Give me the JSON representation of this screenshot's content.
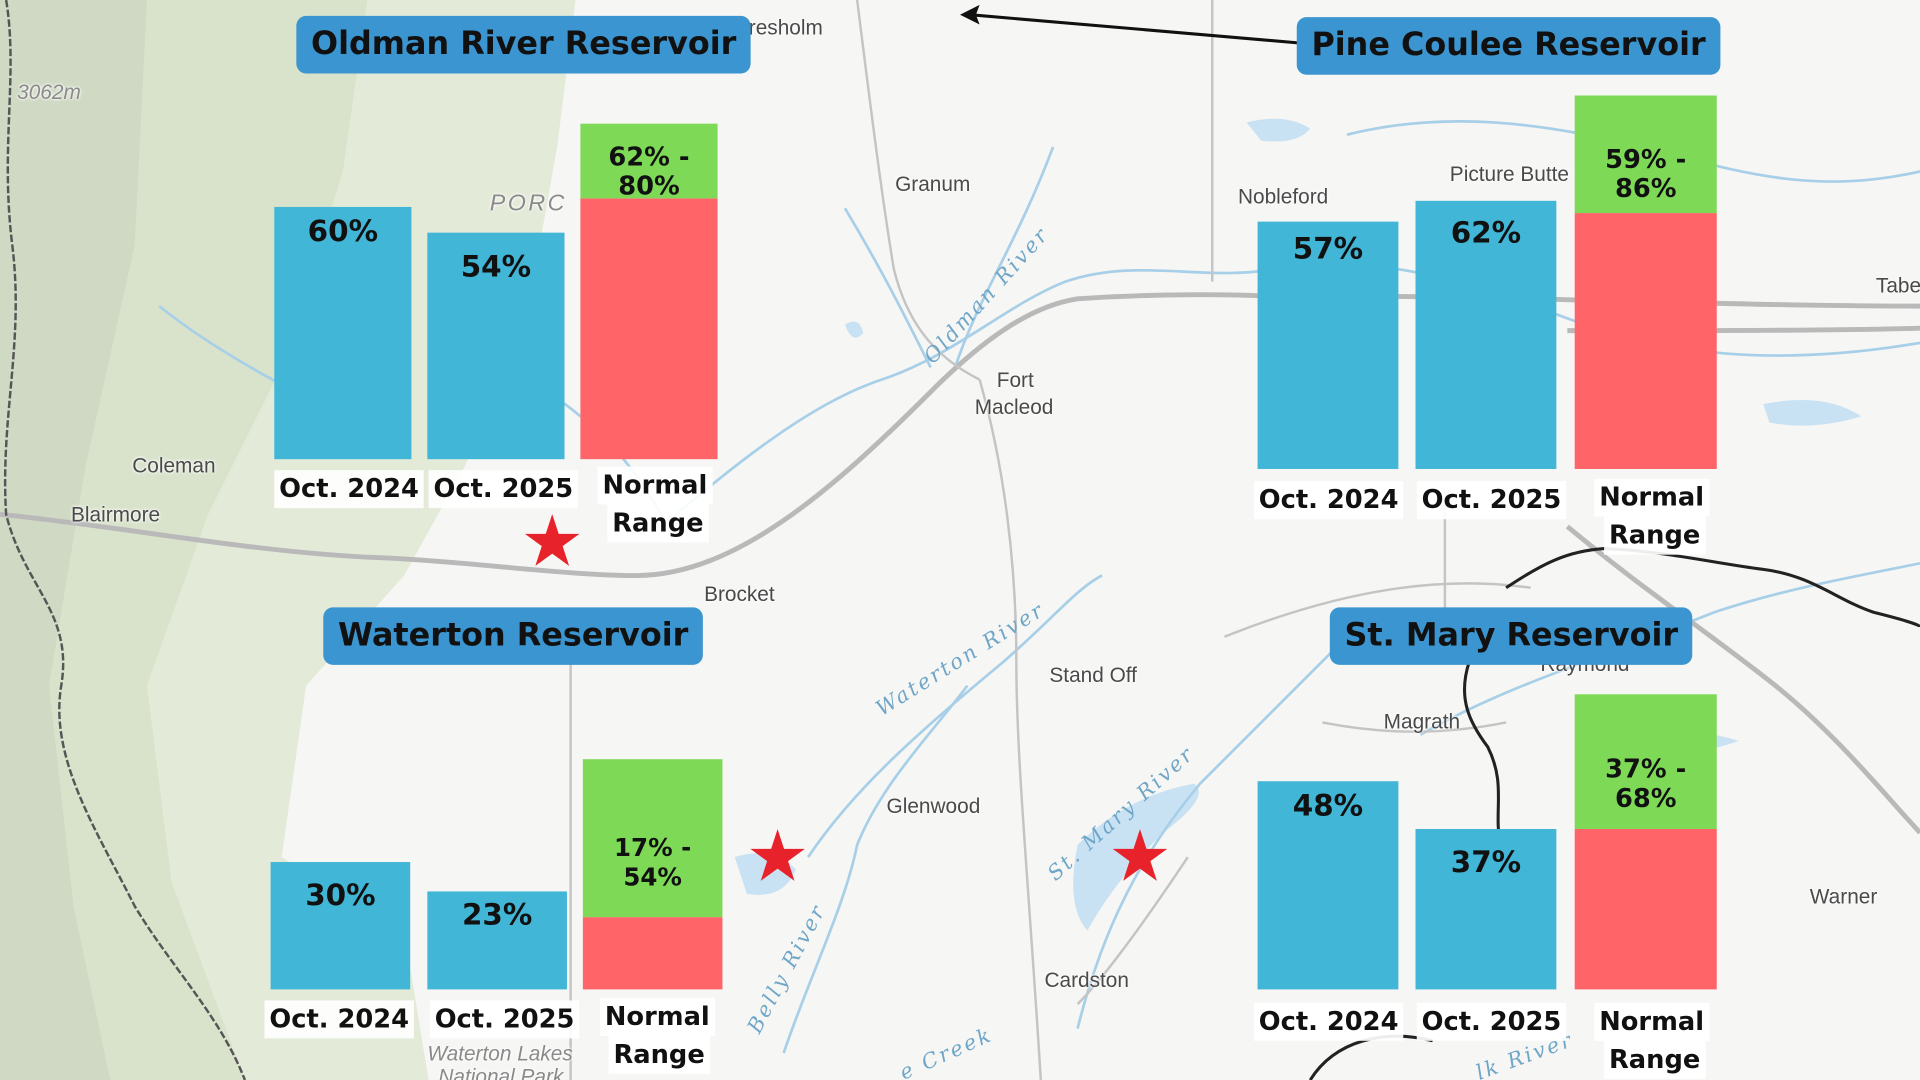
{
  "map": {
    "elevation_label": "3062m",
    "range_label": "PORC",
    "places": {
      "claresholm": "Claresholm",
      "granum": "Granum",
      "nobleford": "Nobleford",
      "picture_butte": "Picture Butte",
      "taber": "Tabe",
      "fort_macleod_1": "Fort",
      "fort_macleod_2": "Macleod",
      "coleman": "Coleman",
      "blairmore": "Blairmore",
      "brocket": "Brocket",
      "stand_off": "Stand Off",
      "magrath": "Magrath",
      "raymond": "Raymond",
      "glenwood": "Glenwood",
      "cardston": "Cardston",
      "warner": "Warner",
      "waterton_1": "Waterton Lakes",
      "waterton_2": "National Park"
    },
    "rivers": {
      "oldman": "Oldman River",
      "waterton": "Waterton River",
      "st_mary": "St. Mary River",
      "belly": "Belly River",
      "lee_creek": "e Creek",
      "milk": "lk River"
    }
  },
  "reservoirs": {
    "oldman": {
      "title": "Oldman River Reservoir",
      "oct_2024": {
        "value": 60,
        "label": "60%"
      },
      "oct_2025": {
        "value": 54,
        "label": "54%"
      },
      "normal_range": {
        "low": 62,
        "high": 80,
        "label": "62% - 80%"
      },
      "xlabels": {
        "a": "Oct. 2024",
        "b": "Oct. 2025",
        "c1": "Normal",
        "c2": "Range"
      }
    },
    "pine_coulee": {
      "title": "Pine Coulee Reservoir",
      "oct_2024": {
        "value": 57,
        "label": "57%"
      },
      "oct_2025": {
        "value": 62,
        "label": "62%"
      },
      "normal_range": {
        "low": 59,
        "high": 86,
        "label": "59% - 86%"
      },
      "xlabels": {
        "a": "Oct. 2024",
        "b": "Oct. 2025",
        "c1": "Normal",
        "c2": "Range"
      }
    },
    "waterton": {
      "title": "Waterton Reservoir",
      "oct_2024": {
        "value": 30,
        "label": "30%"
      },
      "oct_2025": {
        "value": 23,
        "label": "23%"
      },
      "normal_range": {
        "low": 17,
        "high": 54,
        "label": "17% - 54%"
      },
      "xlabels": {
        "a": "Oct. 2024",
        "b": "Oct. 2025",
        "c1": "Normal",
        "c2": "Range"
      }
    },
    "st_mary": {
      "title": "St. Mary Reservoir",
      "oct_2024": {
        "value": 48,
        "label": "48%"
      },
      "oct_2025": {
        "value": 37,
        "label": "37%"
      },
      "normal_range": {
        "low": 37,
        "high": 68,
        "label": "37% - 68%"
      },
      "xlabels": {
        "a": "Oct. 2024",
        "b": "Oct. 2025",
        "c1": "Normal",
        "c2": "Range"
      }
    }
  },
  "colors": {
    "bar": "#41b6d6",
    "range_above": "#7ed957",
    "range_below": "#ff6468",
    "title_box": "#3b95d0",
    "star": "#e8222b"
  }
}
